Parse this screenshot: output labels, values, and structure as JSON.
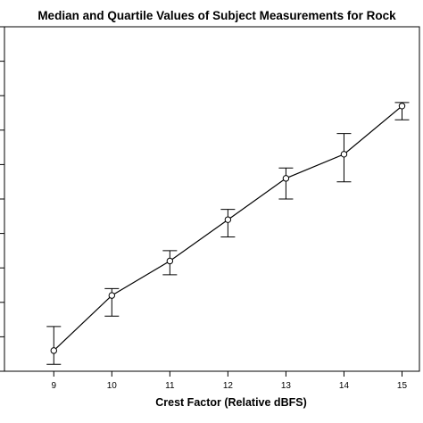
{
  "chart_data": {
    "type": "line",
    "title": "Median and Quartile Values of Subject Measurements for Rock",
    "xlabel": "Crest Factor (Relative dBFS)",
    "ylabel": "",
    "x": [
      9,
      10,
      11,
      12,
      13,
      14,
      15
    ],
    "tick_labels": [
      "9",
      "10",
      "11",
      "12",
      "13",
      "14",
      "15"
    ],
    "xlim": [
      8.15,
      15.3
    ],
    "ylim": [
      0,
      10
    ],
    "y_tick_values": [
      0,
      1,
      2,
      3,
      4,
      5,
      6,
      7,
      8,
      9,
      10
    ],
    "y_tick_labels_visible": false,
    "grid": false,
    "series": [
      {
        "median": [
          0.6,
          2.2,
          3.2,
          4.4,
          5.6,
          6.3,
          7.7
        ],
        "q1": [
          0.2,
          1.6,
          2.8,
          3.9,
          5.0,
          5.5,
          7.3
        ],
        "q3": [
          1.3,
          2.4,
          3.5,
          4.7,
          5.9,
          6.9,
          7.8
        ]
      }
    ],
    "colors": {
      "line": "#000000",
      "marker_fill": "#ffffff",
      "background": "#ffffff"
    }
  }
}
